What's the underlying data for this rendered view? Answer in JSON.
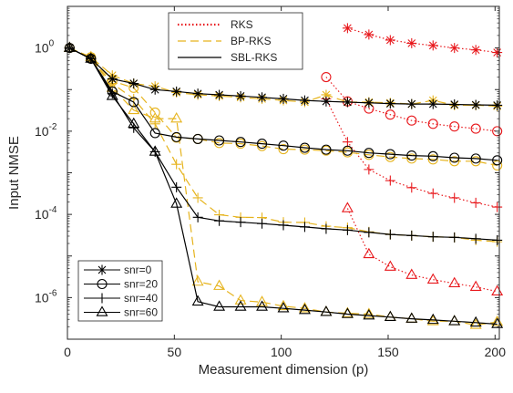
{
  "chart_data": {
    "type": "line",
    "title": "",
    "xlabel": "Measurement dimension (p)",
    "ylabel": "Input NMSE",
    "y_scale": "log",
    "xlim": [
      0,
      202
    ],
    "ylim": [
      1e-07,
      10
    ],
    "grid": false,
    "x_ticks": [
      0,
      50,
      100,
      150,
      200
    ],
    "x_tick_labels": [
      "0",
      "50",
      "100",
      "150",
      "200"
    ],
    "y_ticks": [
      1,
      0.01,
      0.0001,
      1e-06
    ],
    "y_tick_labels": [
      {
        "base": "10",
        "exp": "0"
      },
      {
        "base": "10",
        "exp": "-2"
      },
      {
        "base": "10",
        "exp": "-4"
      },
      {
        "base": "10",
        "exp": "-6"
      }
    ],
    "method_legend": {
      "position": "top-center",
      "entries": [
        {
          "label": "RKS",
          "color": "#e8181c",
          "dash": "dotted"
        },
        {
          "label": "BP-RKS",
          "color": "#e6b41e",
          "dash": "dashed"
        },
        {
          "label": "SBL-RKS",
          "color": "#000000",
          "dash": "solid"
        }
      ]
    },
    "snr_legend": {
      "position": "bottom-left",
      "entries": [
        {
          "label": "snr=0",
          "marker": "asterisk"
        },
        {
          "label": "snr=20",
          "marker": "circle"
        },
        {
          "label": "snr=40",
          "marker": "plus"
        },
        {
          "label": "snr=60",
          "marker": "triangle"
        }
      ]
    },
    "series": [
      {
        "method": "RKS",
        "snr": 0,
        "marker": "asterisk",
        "x": [
          131,
          141,
          151,
          161,
          171,
          181,
          191,
          201
        ],
        "y": [
          3,
          2.1,
          1.55,
          1.3,
          1.15,
          1.0,
          0.9,
          0.78
        ]
      },
      {
        "method": "RKS",
        "snr": 20,
        "marker": "circle",
        "x": [
          121,
          131,
          141,
          151,
          161,
          171,
          181,
          191,
          201
        ],
        "y": [
          0.2,
          0.052,
          0.035,
          0.025,
          0.018,
          0.015,
          0.013,
          0.0115,
          0.01
        ]
      },
      {
        "method": "RKS",
        "snr": 40,
        "marker": "plus",
        "x": [
          121,
          131,
          141,
          151,
          161,
          171,
          181,
          191,
          201
        ],
        "y": [
          0.06,
          0.0055,
          0.0012,
          0.00065,
          0.00044,
          0.00032,
          0.00025,
          0.00019,
          0.00015
        ]
      },
      {
        "method": "RKS",
        "snr": 60,
        "marker": "triangle",
        "x": [
          131,
          141,
          151,
          161,
          171,
          181,
          191,
          201
        ],
        "y": [
          0.00014,
          1.1e-05,
          5.5e-06,
          3.5e-06,
          2.7e-06,
          2.2e-06,
          1.8e-06,
          1.4e-06
        ]
      },
      {
        "method": "BP-RKS",
        "snr": 0,
        "marker": "asterisk",
        "x": [
          1,
          11,
          21,
          31,
          41,
          51,
          61,
          71,
          81,
          91,
          101,
          111,
          121,
          131,
          141,
          151,
          161,
          171,
          181,
          191,
          201
        ],
        "y": [
          1,
          0.6,
          0.22,
          0.14,
          0.12,
          0.085,
          0.075,
          0.07,
          0.065,
          0.06,
          0.055,
          0.05,
          0.075,
          0.05,
          0.05,
          0.048,
          0.045,
          0.055,
          0.042,
          0.042,
          0.04
        ]
      },
      {
        "method": "BP-RKS",
        "snr": 20,
        "marker": "circle",
        "x": [
          1,
          11,
          21,
          31,
          41,
          51,
          61,
          71,
          81,
          91,
          101,
          111,
          121,
          131,
          141,
          151,
          161,
          171,
          181,
          191,
          201
        ],
        "y": [
          1,
          0.6,
          0.16,
          0.11,
          0.028,
          0.007,
          0.0065,
          0.0052,
          0.005,
          0.0044,
          0.0037,
          0.0036,
          0.0034,
          0.0031,
          0.0027,
          0.0024,
          0.0022,
          0.0021,
          0.0019,
          0.0019,
          0.0015
        ]
      },
      {
        "method": "BP-RKS",
        "snr": 40,
        "marker": "plus",
        "x": [
          1,
          11,
          21,
          31,
          41,
          51,
          61,
          71,
          81,
          91,
          101,
          111,
          121,
          131,
          141,
          151,
          161,
          171,
          181,
          191,
          201
        ],
        "y": [
          1,
          0.55,
          0.14,
          0.06,
          0.015,
          0.0016,
          0.00025,
          9.8e-05,
          8.5e-05,
          8.4e-05,
          6.5e-05,
          6.4e-05,
          5.2e-05,
          4.8e-05,
          3.8e-05,
          3.3e-05,
          3.1e-05,
          2.9e-05,
          2.8e-05,
          2.4e-05,
          2.2e-05
        ]
      },
      {
        "method": "BP-RKS",
        "snr": 60,
        "marker": "triangle",
        "x": [
          1,
          11,
          21,
          31,
          41,
          51,
          61,
          71,
          81,
          91,
          101,
          111,
          121,
          131,
          141,
          151,
          161,
          171,
          181,
          191,
          201
        ],
        "y": [
          1,
          0.6,
          0.11,
          0.032,
          0.02,
          0.02,
          2.4e-06,
          1.9e-06,
          8.5e-07,
          7.8e-07,
          6.2e-07,
          5.5e-07,
          4.5e-07,
          4.2e-07,
          4e-07,
          3.4e-07,
          3.1e-07,
          2.7e-07,
          2.7e-07,
          2.2e-07,
          2.6e-07
        ]
      },
      {
        "method": "SBL-RKS",
        "snr": 0,
        "marker": "asterisk",
        "x": [
          1,
          11,
          21,
          31,
          41,
          51,
          61,
          71,
          81,
          91,
          101,
          111,
          121,
          131,
          141,
          151,
          161,
          171,
          181,
          191,
          201
        ],
        "y": [
          1,
          0.55,
          0.18,
          0.14,
          0.1,
          0.09,
          0.08,
          0.075,
          0.07,
          0.065,
          0.06,
          0.055,
          0.052,
          0.05,
          0.048,
          0.046,
          0.045,
          0.045,
          0.044,
          0.043,
          0.042
        ]
      },
      {
        "method": "SBL-RKS",
        "snr": 20,
        "marker": "circle",
        "x": [
          1,
          11,
          21,
          31,
          41,
          51,
          61,
          71,
          81,
          91,
          101,
          111,
          121,
          131,
          141,
          151,
          161,
          171,
          181,
          191,
          201
        ],
        "y": [
          1,
          0.55,
          0.09,
          0.05,
          0.009,
          0.0072,
          0.0065,
          0.006,
          0.0055,
          0.005,
          0.0045,
          0.004,
          0.0036,
          0.0034,
          0.003,
          0.0028,
          0.0026,
          0.0025,
          0.0023,
          0.0022,
          0.002
        ]
      },
      {
        "method": "SBL-RKS",
        "snr": 40,
        "marker": "plus",
        "x": [
          1,
          11,
          21,
          31,
          41,
          51,
          61,
          71,
          81,
          91,
          101,
          111,
          121,
          131,
          141,
          151,
          161,
          171,
          181,
          191,
          201
        ],
        "y": [
          1,
          0.55,
          0.08,
          0.012,
          0.0032,
          0.00045,
          8.5e-05,
          7e-05,
          6.5e-05,
          6e-05,
          5.5e-05,
          5e-05,
          4.5e-05,
          4.2e-05,
          3.7e-05,
          3.3e-05,
          3.1e-05,
          2.9e-05,
          2.8e-05,
          2.6e-05,
          2.4e-05
        ]
      },
      {
        "method": "SBL-RKS",
        "snr": 60,
        "marker": "triangle",
        "x": [
          1,
          11,
          21,
          31,
          41,
          51,
          61,
          71,
          81,
          91,
          101,
          111,
          121,
          131,
          141,
          151,
          161,
          171,
          181,
          191,
          201
        ],
        "y": [
          1,
          0.55,
          0.07,
          0.015,
          0.0032,
          0.00018,
          8e-07,
          6e-07,
          6e-07,
          6e-07,
          5.5e-07,
          5e-07,
          4.5e-07,
          4e-07,
          3.7e-07,
          3.4e-07,
          3.1e-07,
          2.9e-07,
          2.7e-07,
          2.5e-07,
          2.3e-07
        ]
      }
    ]
  }
}
